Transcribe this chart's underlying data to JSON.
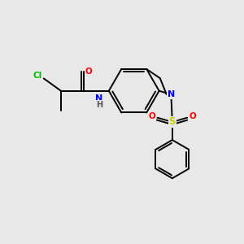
{
  "background_color": "#e8e8e8",
  "bond_color": "#000000",
  "atom_colors": {
    "O": "#ff0000",
    "N": "#0000ff",
    "Cl": "#00bb00",
    "S": "#cccc00",
    "C": "#000000",
    "H": "#555555"
  },
  "figsize": [
    3.0,
    3.0
  ],
  "dpi": 100,
  "bond_lw": 1.4,
  "font_size": 7.5
}
